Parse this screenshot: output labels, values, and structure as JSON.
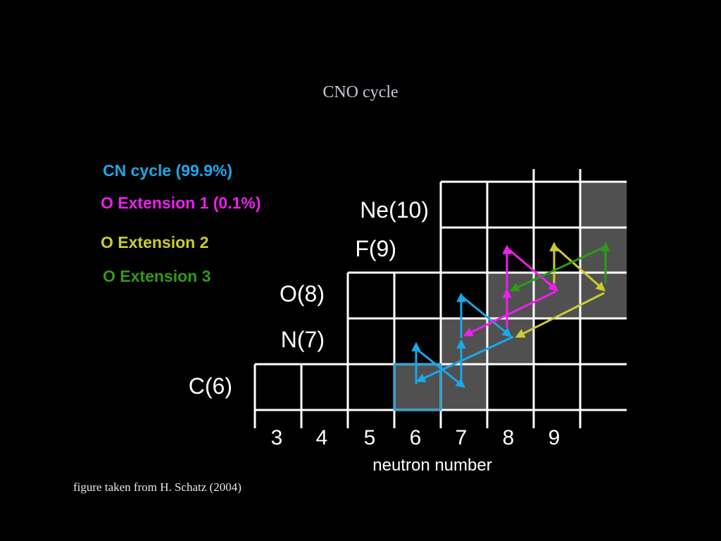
{
  "title": "CNO cycle",
  "legend": [
    {
      "label": "CN cycle (99.9%)",
      "color": "#19a8ea"
    },
    {
      "label": "O Extension 1 (0.1%)",
      "color": "#f01ef0"
    },
    {
      "label": "O Extension 2",
      "color": "#cccc2e"
    },
    {
      "label": "O Extension 3",
      "color": "#2e9a18"
    }
  ],
  "element_labels": [
    "C(6)",
    "N(7)",
    "O(8)",
    "F(9)",
    "Ne(10)"
  ],
  "neutron_numbers": [
    "3",
    "4",
    "5",
    "6",
    "7",
    "8",
    "9"
  ],
  "xlabel": "neutron number",
  "credit": "figure taken from H. Schatz (2004)",
  "colors": {
    "background": "#000000",
    "grid": "#ffffff",
    "highlight": "#505050"
  }
}
